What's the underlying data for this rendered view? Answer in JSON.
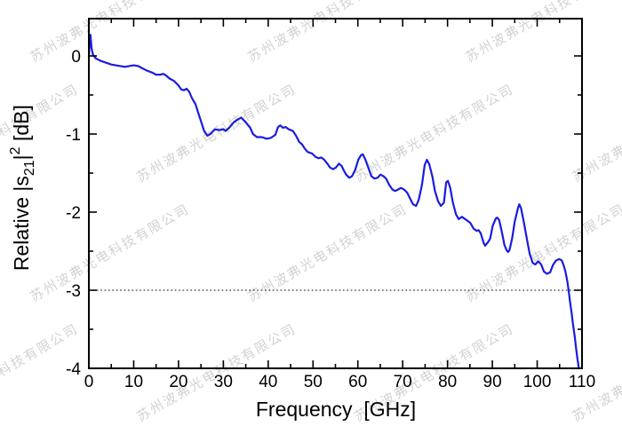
{
  "figure": {
    "background": "#ffffff",
    "axis_color": "#000000",
    "curve_color": "#1b1be0",
    "watermark": {
      "text": "苏州波弗光电科技有限公司",
      "color": "#d2d2d2",
      "angle_deg": -30
    }
  },
  "x_axis": {
    "title": "Frequency  [GHz]",
    "min": 0,
    "max": 110,
    "major_tick_values": [
      0,
      10,
      20,
      30,
      40,
      50,
      60,
      70,
      80,
      90,
      100,
      110
    ],
    "major_tick_labels": [
      "0",
      "10",
      "20",
      "30",
      "40",
      "50",
      "60",
      "70",
      "80",
      "90",
      "100",
      "110"
    ],
    "minor_tick_values": [
      5,
      15,
      25,
      35,
      45,
      55,
      65,
      75,
      85,
      95,
      105
    ]
  },
  "y_axis": {
    "title_parts": {
      "prefix": "Relative |s",
      "sub": "21",
      "bar": "|",
      "sup": "2",
      "suffix": " [dB]"
    },
    "min": -4,
    "max": 0.5,
    "major_tick_values": [
      0,
      -1,
      -2,
      -3,
      -4
    ],
    "major_tick_labels": [
      "0",
      "-1",
      "-2",
      "-3",
      "-4"
    ],
    "minor_tick_values": [
      -0.5,
      -1.5,
      -2.5,
      -3.5
    ]
  },
  "reference_line": {
    "value_db": -3,
    "style": "dotted",
    "color": "#000000"
  },
  "chart_data": {
    "type": "line",
    "title": "",
    "xlabel": "Frequency [GHz]",
    "ylabel": "Relative |s21|^2 [dB]",
    "xlim": [
      0,
      110
    ],
    "ylim": [
      -4,
      0.5
    ],
    "grid": false,
    "legend": "none",
    "reference_line_db": -3,
    "series": [
      {
        "name": "Relative |s21|^2",
        "color": "#1b1be0",
        "points": [
          [
            0,
            -0.02
          ],
          [
            0.2,
            0.22
          ],
          [
            0.35,
            0.27
          ],
          [
            0.6,
            0.1
          ],
          [
            0.9,
            0.02
          ],
          [
            1.5,
            -0.03
          ],
          [
            2.5,
            -0.06
          ],
          [
            4,
            -0.09
          ],
          [
            5,
            -0.11
          ],
          [
            6,
            -0.12
          ],
          [
            7,
            -0.13
          ],
          [
            8,
            -0.14
          ],
          [
            9,
            -0.13
          ],
          [
            10,
            -0.12
          ],
          [
            11,
            -0.13
          ],
          [
            12,
            -0.16
          ],
          [
            13,
            -0.19
          ],
          [
            14,
            -0.21
          ],
          [
            15,
            -0.24
          ],
          [
            16,
            -0.24
          ],
          [
            16.6,
            -0.23
          ],
          [
            17.2,
            -0.25
          ],
          [
            18,
            -0.29
          ],
          [
            19,
            -0.32
          ],
          [
            20,
            -0.38
          ],
          [
            20.6,
            -0.43
          ],
          [
            21.2,
            -0.44
          ],
          [
            21.8,
            -0.42
          ],
          [
            22.4,
            -0.46
          ],
          [
            23,
            -0.54
          ],
          [
            23.8,
            -0.62
          ],
          [
            24.4,
            -0.73
          ],
          [
            25.1,
            -0.85
          ],
          [
            25.7,
            -0.96
          ],
          [
            26.4,
            -1.02
          ],
          [
            27.1,
            -1.0
          ],
          [
            28.1,
            -0.94
          ],
          [
            29,
            -0.95
          ],
          [
            30,
            -0.94
          ],
          [
            30.5,
            -0.96
          ],
          [
            31.3,
            -0.92
          ],
          [
            32.3,
            -0.85
          ],
          [
            33.3,
            -0.81
          ],
          [
            34,
            -0.79
          ],
          [
            35,
            -0.85
          ],
          [
            36,
            -0.92
          ],
          [
            36.6,
            -1.0
          ],
          [
            37.5,
            -1.04
          ],
          [
            38.6,
            -1.04
          ],
          [
            39.6,
            -1.06
          ],
          [
            40.6,
            -1.05
          ],
          [
            41.6,
            -1.01
          ],
          [
            42.2,
            -0.91
          ],
          [
            42.7,
            -0.89
          ],
          [
            43.3,
            -0.92
          ],
          [
            43.9,
            -0.91
          ],
          [
            44.6,
            -0.94
          ],
          [
            45.5,
            -0.96
          ],
          [
            46.2,
            -1.02
          ],
          [
            46.9,
            -1.1
          ],
          [
            47.5,
            -1.13
          ],
          [
            48.2,
            -1.19
          ],
          [
            48.8,
            -1.23
          ],
          [
            49.8,
            -1.25
          ],
          [
            50.5,
            -1.29
          ],
          [
            51.2,
            -1.31
          ],
          [
            51.8,
            -1.3
          ],
          [
            52.5,
            -1.33
          ],
          [
            53.2,
            -1.38
          ],
          [
            53.8,
            -1.43
          ],
          [
            54.5,
            -1.45
          ],
          [
            55.1,
            -1.43
          ],
          [
            55.8,
            -1.38
          ],
          [
            56.4,
            -1.41
          ],
          [
            56.8,
            -1.46
          ],
          [
            57.4,
            -1.52
          ],
          [
            58.1,
            -1.56
          ],
          [
            58.7,
            -1.54
          ],
          [
            59.4,
            -1.46
          ],
          [
            60.1,
            -1.33
          ],
          [
            60.7,
            -1.27
          ],
          [
            61.1,
            -1.26
          ],
          [
            61.7,
            -1.33
          ],
          [
            62.4,
            -1.44
          ],
          [
            63,
            -1.54
          ],
          [
            63.7,
            -1.57
          ],
          [
            64.4,
            -1.56
          ],
          [
            65,
            -1.52
          ],
          [
            65.7,
            -1.54
          ],
          [
            66.3,
            -1.57
          ],
          [
            67,
            -1.65
          ],
          [
            67.7,
            -1.71
          ],
          [
            68.3,
            -1.73
          ],
          [
            69,
            -1.71
          ],
          [
            69.6,
            -1.69
          ],
          [
            70.3,
            -1.71
          ],
          [
            71,
            -1.75
          ],
          [
            71.6,
            -1.82
          ],
          [
            72.3,
            -1.9
          ],
          [
            73,
            -1.92
          ],
          [
            73.6,
            -1.84
          ],
          [
            74.3,
            -1.65
          ],
          [
            74.9,
            -1.4
          ],
          [
            75.4,
            -1.33
          ],
          [
            75.9,
            -1.38
          ],
          [
            76.6,
            -1.54
          ],
          [
            77.2,
            -1.73
          ],
          [
            77.9,
            -1.86
          ],
          [
            78.5,
            -1.92
          ],
          [
            79.2,
            -1.88
          ],
          [
            79.7,
            -1.62
          ],
          [
            80.1,
            -1.6
          ],
          [
            80.6,
            -1.69
          ],
          [
            81.2,
            -1.88
          ],
          [
            81.9,
            -2.03
          ],
          [
            82.5,
            -2.09
          ],
          [
            83.2,
            -2.06
          ],
          [
            84.2,
            -2.1
          ],
          [
            85.1,
            -2.14
          ],
          [
            85.8,
            -2.21
          ],
          [
            86.5,
            -2.24
          ],
          [
            86.9,
            -2.23
          ],
          [
            87.4,
            -2.27
          ],
          [
            88.1,
            -2.4
          ],
          [
            88.4,
            -2.43
          ],
          [
            89.1,
            -2.38
          ],
          [
            89.5,
            -2.34
          ],
          [
            90.1,
            -2.17
          ],
          [
            90.8,
            -2.08
          ],
          [
            91.1,
            -2.07
          ],
          [
            91.5,
            -2.1
          ],
          [
            92.1,
            -2.25
          ],
          [
            92.7,
            -2.42
          ],
          [
            93.2,
            -2.49
          ],
          [
            93.5,
            -2.51
          ],
          [
            93.8,
            -2.49
          ],
          [
            94.4,
            -2.34
          ],
          [
            95,
            -2.12
          ],
          [
            95.7,
            -1.95
          ],
          [
            96,
            -1.9
          ],
          [
            96.4,
            -1.95
          ],
          [
            97,
            -2.12
          ],
          [
            97.7,
            -2.34
          ],
          [
            98.3,
            -2.53
          ],
          [
            99,
            -2.65
          ],
          [
            99.6,
            -2.67
          ],
          [
            100.2,
            -2.63
          ],
          [
            100.9,
            -2.67
          ],
          [
            101.5,
            -2.76
          ],
          [
            102.2,
            -2.79
          ],
          [
            102.9,
            -2.77
          ],
          [
            103.5,
            -2.68
          ],
          [
            104.2,
            -2.62
          ],
          [
            104.9,
            -2.6
          ],
          [
            105.5,
            -2.62
          ],
          [
            105.9,
            -2.68
          ],
          [
            106.3,
            -2.76
          ],
          [
            106.7,
            -2.88
          ],
          [
            107,
            -3.0
          ],
          [
            107.3,
            -3.14
          ],
          [
            107.7,
            -3.3
          ],
          [
            108,
            -3.44
          ],
          [
            108.4,
            -3.6
          ],
          [
            108.7,
            -3.75
          ],
          [
            109,
            -3.89
          ],
          [
            109.3,
            -4.0
          ]
        ]
      }
    ]
  }
}
